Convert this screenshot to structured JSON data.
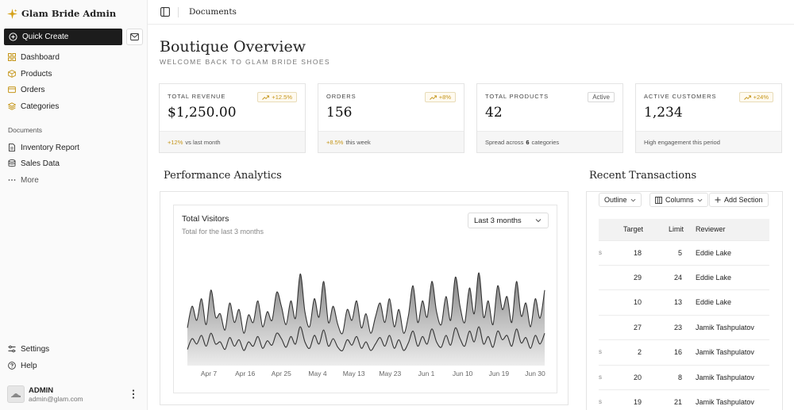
{
  "sidebar": {
    "brand": "Glam Bride Admin",
    "quick_create": "Quick Create",
    "nav": [
      {
        "label": "Dashboard",
        "icon": "dashboard-icon"
      },
      {
        "label": "Products",
        "icon": "box-icon"
      },
      {
        "label": "Orders",
        "icon": "wallet-icon"
      },
      {
        "label": "Categories",
        "icon": "layers-icon"
      }
    ],
    "documents_heading": "Documents",
    "documents": [
      {
        "label": "Inventory Report",
        "icon": "file-icon"
      },
      {
        "label": "Sales Data",
        "icon": "database-icon"
      },
      {
        "label": "More",
        "icon": "more-icon"
      }
    ],
    "footer_nav": [
      {
        "label": "Settings",
        "icon": "settings-icon"
      },
      {
        "label": "Help",
        "icon": "help-icon"
      }
    ],
    "user": {
      "name": "ADMIN",
      "email": "admin@glam.com"
    }
  },
  "header": {
    "breadcrumb": "Documents"
  },
  "page": {
    "title": "Boutique Overview",
    "subtitle": "WELCOME BACK TO GLAM BRIDE SHOES"
  },
  "stats": [
    {
      "label": "TOTAL REVENUE",
      "value": "$1,250.00",
      "badge": "+12.5%",
      "foot_accent": "+12%",
      "foot_text": "vs last month"
    },
    {
      "label": "ORDERS",
      "value": "156",
      "badge": "+8%",
      "foot_accent": "+8.5%",
      "foot_text": "this week"
    },
    {
      "label": "TOTAL PRODUCTS",
      "value": "42",
      "badge": "Active",
      "foot_pre": "Spread across",
      "foot_bold": "6",
      "foot_post": "categories"
    },
    {
      "label": "ACTIVE CUSTOMERS",
      "value": "1,234",
      "badge": "+24%",
      "foot_text": "High engagement this period"
    }
  ],
  "performance": {
    "section_title": "Performance Analytics",
    "chart_title": "Total Visitors",
    "chart_subtitle": "Total for the last 3 months",
    "range": "Last 3 months"
  },
  "chart_data": {
    "type": "area",
    "x_ticks": [
      "Apr 7",
      "Apr 16",
      "Apr 25",
      "May 4",
      "May 13",
      "May 23",
      "Jun 1",
      "Jun 10",
      "Jun 19",
      "Jun 30"
    ],
    "series": [
      {
        "values": [
          0.35,
          0.55,
          0.42,
          0.62,
          0.38,
          0.7,
          0.45,
          0.48,
          0.33,
          0.58,
          0.4,
          0.52,
          0.3,
          0.47,
          0.4,
          0.6,
          0.36,
          0.5,
          0.42,
          0.68,
          0.55,
          0.38,
          0.6,
          0.44,
          0.85,
          0.5,
          0.36,
          0.62,
          0.45,
          0.78,
          0.4,
          0.55,
          0.38,
          0.3,
          0.52,
          0.42,
          0.6,
          0.35,
          0.48,
          0.3,
          0.45,
          0.58,
          0.4,
          0.62,
          0.36,
          0.52,
          0.3,
          0.46,
          0.74,
          0.4,
          0.6,
          0.45,
          0.78,
          0.5,
          0.38,
          0.64,
          0.42,
          0.82,
          0.55,
          0.4,
          0.72,
          0.48,
          0.86,
          0.45,
          0.6,
          0.38,
          0.74,
          0.52,
          0.64,
          0.4,
          0.78,
          0.46,
          0.58,
          0.36,
          0.62,
          0.44,
          0.7
        ]
      },
      {
        "values": [
          0.15,
          0.25,
          0.2,
          0.28,
          0.18,
          0.3,
          0.2,
          0.22,
          0.15,
          0.26,
          0.18,
          0.24,
          0.14,
          0.22,
          0.18,
          0.27,
          0.16,
          0.23,
          0.19,
          0.3,
          0.25,
          0.17,
          0.27,
          0.2,
          0.36,
          0.22,
          0.16,
          0.28,
          0.2,
          0.33,
          0.18,
          0.25,
          0.17,
          0.14,
          0.24,
          0.19,
          0.27,
          0.16,
          0.22,
          0.14,
          0.2,
          0.26,
          0.18,
          0.28,
          0.16,
          0.24,
          0.14,
          0.21,
          0.32,
          0.18,
          0.27,
          0.2,
          0.34,
          0.22,
          0.17,
          0.28,
          0.19,
          0.35,
          0.25,
          0.18,
          0.32,
          0.22,
          0.36,
          0.2,
          0.27,
          0.17,
          0.32,
          0.24,
          0.28,
          0.18,
          0.34,
          0.21,
          0.26,
          0.16,
          0.28,
          0.2,
          0.3
        ]
      }
    ]
  },
  "transactions": {
    "section_title": "Recent Transactions",
    "toolbar": {
      "outline": "Outline",
      "columns": "Columns",
      "add": "Add Section"
    },
    "columns": [
      "Target",
      "Limit",
      "Reviewer"
    ],
    "rows": [
      {
        "stub": "s",
        "target": "18",
        "limit": "5",
        "reviewer": "Eddie Lake"
      },
      {
        "stub": "",
        "target": "29",
        "limit": "24",
        "reviewer": "Eddie Lake"
      },
      {
        "stub": "",
        "target": "10",
        "limit": "13",
        "reviewer": "Eddie Lake"
      },
      {
        "stub": "",
        "target": "27",
        "limit": "23",
        "reviewer": "Jamik Tashpulatov"
      },
      {
        "stub": "s",
        "target": "2",
        "limit": "16",
        "reviewer": "Jamik Tashpulatov"
      },
      {
        "stub": "s",
        "target": "20",
        "limit": "8",
        "reviewer": "Jamik Tashpulatov"
      },
      {
        "stub": "s",
        "target": "19",
        "limit": "21",
        "reviewer": "Jamik Tashpulatov"
      }
    ]
  },
  "colors": {
    "accent": "#c5961a",
    "dark": "#1c1c1c"
  }
}
